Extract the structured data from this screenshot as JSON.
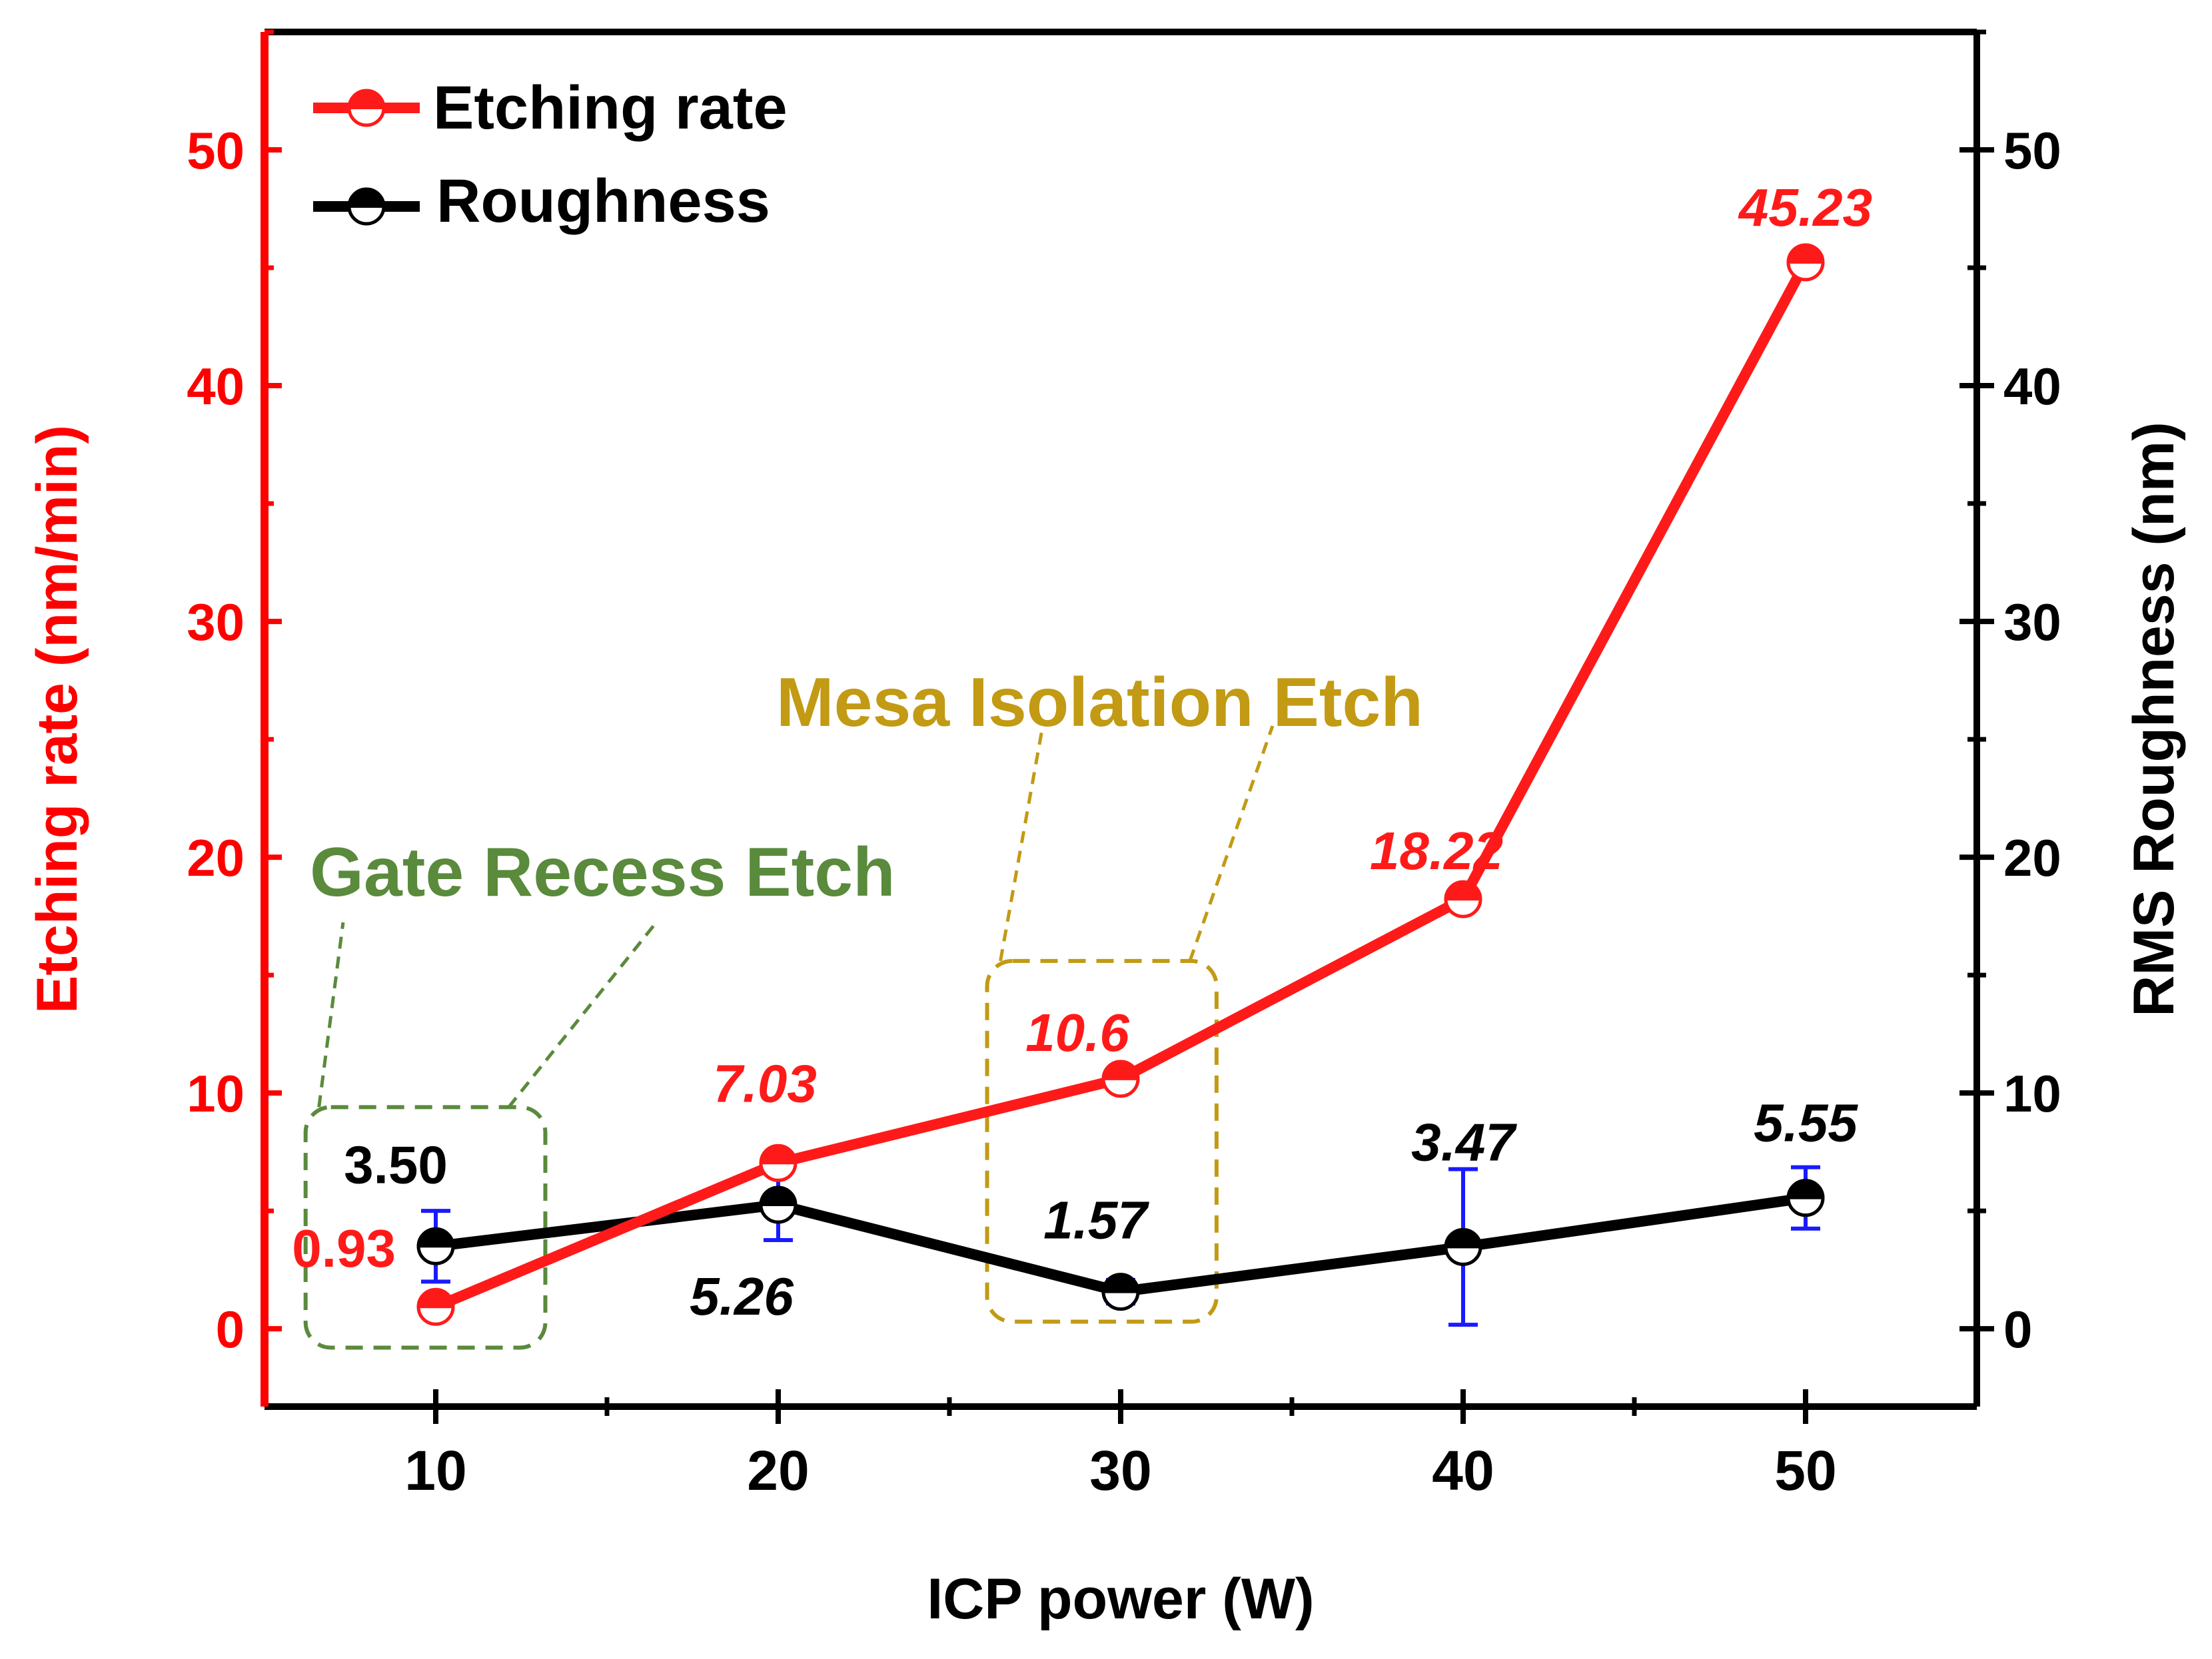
{
  "chart_data": {
    "type": "line",
    "x": [
      10,
      20,
      30,
      40,
      50
    ],
    "x_ticks": [
      10,
      20,
      30,
      40,
      50
    ],
    "xlim": [
      5,
      55
    ],
    "xlabel": "ICP power (W)",
    "ylabel_left": "Etching rate (nm/min)",
    "ylabel_right": "RMS Roughness (nm)",
    "ylim_left": [
      -3.3,
      55
    ],
    "ylim_right": [
      -3.3,
      55
    ],
    "yticks_left": [
      0,
      10,
      20,
      30,
      40,
      50
    ],
    "yticks_right": [
      0,
      10,
      20,
      30,
      40,
      50
    ],
    "legend_position": "top-left",
    "series": [
      {
        "name": "Etching rate",
        "axis": "left",
        "color": "#ff1a1a",
        "values": [
          0.93,
          7.03,
          10.6,
          18.22,
          45.23
        ],
        "labels": [
          "0.93",
          "7.03",
          "10.6",
          "18.22",
          "45.23"
        ]
      },
      {
        "name": "Roughness",
        "axis": "right",
        "color": "#000000",
        "error_bar_color": "#1a1aff",
        "values": [
          3.5,
          5.26,
          1.57,
          3.47,
          5.55
        ],
        "errors": [
          1.5,
          1.5,
          0.5,
          3.3,
          1.3
        ],
        "labels": [
          "3.50",
          "5.26",
          "1.57",
          "3.47",
          "5.55"
        ]
      }
    ],
    "annotations": [
      {
        "text": "Gate Recess Etch",
        "color": "#5a8a3c",
        "box_x_range": [
          6.2,
          13.2
        ],
        "box_y_range": [
          -0.8,
          9.4
        ]
      },
      {
        "text": "Mesa Isolation Etch",
        "color": "#c29a14",
        "box_x_range": [
          26.1,
          32.8
        ],
        "box_y_range": [
          0.3,
          15.6
        ]
      }
    ]
  }
}
